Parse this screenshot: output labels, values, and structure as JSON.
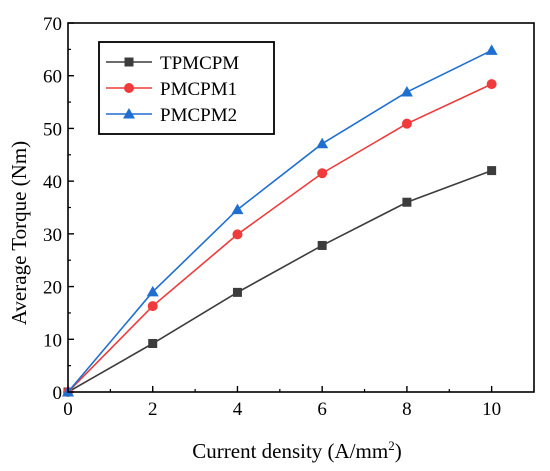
{
  "chart_data": {
    "type": "line",
    "xlabel": "Current density (A/mm",
    "xlabel_sup": "2",
    "xlabel_end": ")",
    "ylabel": "Average Torque (Nm)",
    "xlim": [
      0,
      11
    ],
    "ylim": [
      0,
      70
    ],
    "x_ticks": [
      0,
      2,
      4,
      6,
      8,
      10
    ],
    "y_ticks": [
      0,
      10,
      20,
      30,
      40,
      50,
      60,
      70
    ],
    "grid": false,
    "legend_position": "top-left",
    "x": [
      0,
      2,
      4,
      6,
      8,
      10
    ],
    "series": [
      {
        "name": "TPMCPM",
        "color": "#3c3c3c",
        "marker": "square",
        "values": [
          0,
          9.2,
          18.9,
          27.8,
          36.0,
          42.0
        ]
      },
      {
        "name": "PMCPM1",
        "color": "#ee3b3b",
        "marker": "circle",
        "values": [
          0,
          16.3,
          29.9,
          41.5,
          50.9,
          58.4
        ]
      },
      {
        "name": "PMCPM2",
        "color": "#1f6fd1",
        "marker": "triangle",
        "values": [
          0,
          19.0,
          34.6,
          47.1,
          56.9,
          64.8
        ]
      }
    ]
  }
}
